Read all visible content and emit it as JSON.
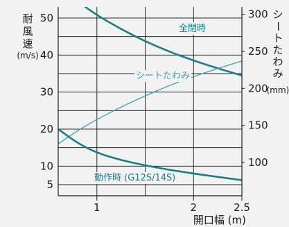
{
  "chart_data": {
    "type": "line",
    "x_axis": {
      "label": "開口幅 (m)",
      "ticks": [
        1,
        2,
        2.5
      ],
      "tick_labels": [
        "1",
        "2",
        "2.5"
      ],
      "range": [
        0.6,
        2.5
      ],
      "minor_ticks": [
        1.5
      ]
    },
    "y_left": {
      "label_chars": [
        "耐",
        "風",
        "速"
      ],
      "unit": "(m/s)",
      "ticks": [
        5,
        10,
        20,
        30,
        40,
        50
      ],
      "tick_labels": [
        "5",
        "10",
        "20",
        "30",
        "40",
        "50"
      ],
      "range": [
        2,
        53
      ],
      "grid": [
        5,
        10,
        15,
        20,
        25,
        30,
        35,
        40,
        45,
        50
      ]
    },
    "y_right": {
      "label_chars": [
        "シ",
        "ー",
        "ト",
        "た",
        "わ",
        "み"
      ],
      "unit": "(mm)",
      "ticks": [
        100,
        150,
        200,
        250,
        300
      ],
      "tick_labels": [
        "100",
        "150",
        "200",
        "250",
        "300"
      ],
      "range": [
        55,
        310
      ]
    },
    "series": [
      {
        "name": "全閉時",
        "axis": "left",
        "color": "#187f86",
        "width": 2.6,
        "points": [
          [
            0.87,
            53.2
          ],
          [
            1.0,
            50.8
          ],
          [
            1.25,
            47.0
          ],
          [
            1.5,
            43.7
          ],
          [
            1.75,
            40.9
          ],
          [
            2.0,
            38.5
          ],
          [
            2.25,
            36.4
          ],
          [
            2.5,
            34.5
          ]
        ]
      },
      {
        "name": "シートたわみ",
        "axis": "right",
        "color": "#3aa3ad",
        "width": 1.3,
        "points": [
          [
            0.6,
            125
          ],
          [
            0.8,
            143
          ],
          [
            1.0,
            158
          ],
          [
            1.25,
            175
          ],
          [
            1.5,
            190
          ],
          [
            1.75,
            204
          ],
          [
            2.0,
            216
          ],
          [
            2.25,
            227
          ],
          [
            2.5,
            237
          ]
        ]
      },
      {
        "name": "動作時 (G12S/14S)",
        "axis": "left",
        "color": "#187f86",
        "width": 2.6,
        "points": [
          [
            0.6,
            20.0
          ],
          [
            0.8,
            16.2
          ],
          [
            1.0,
            13.6
          ],
          [
            1.25,
            11.6
          ],
          [
            1.5,
            10.2
          ],
          [
            1.75,
            9.0
          ],
          [
            2.0,
            8.0
          ],
          [
            2.25,
            7.1
          ],
          [
            2.5,
            6.2
          ]
        ]
      }
    ],
    "legend": "inline labels"
  }
}
